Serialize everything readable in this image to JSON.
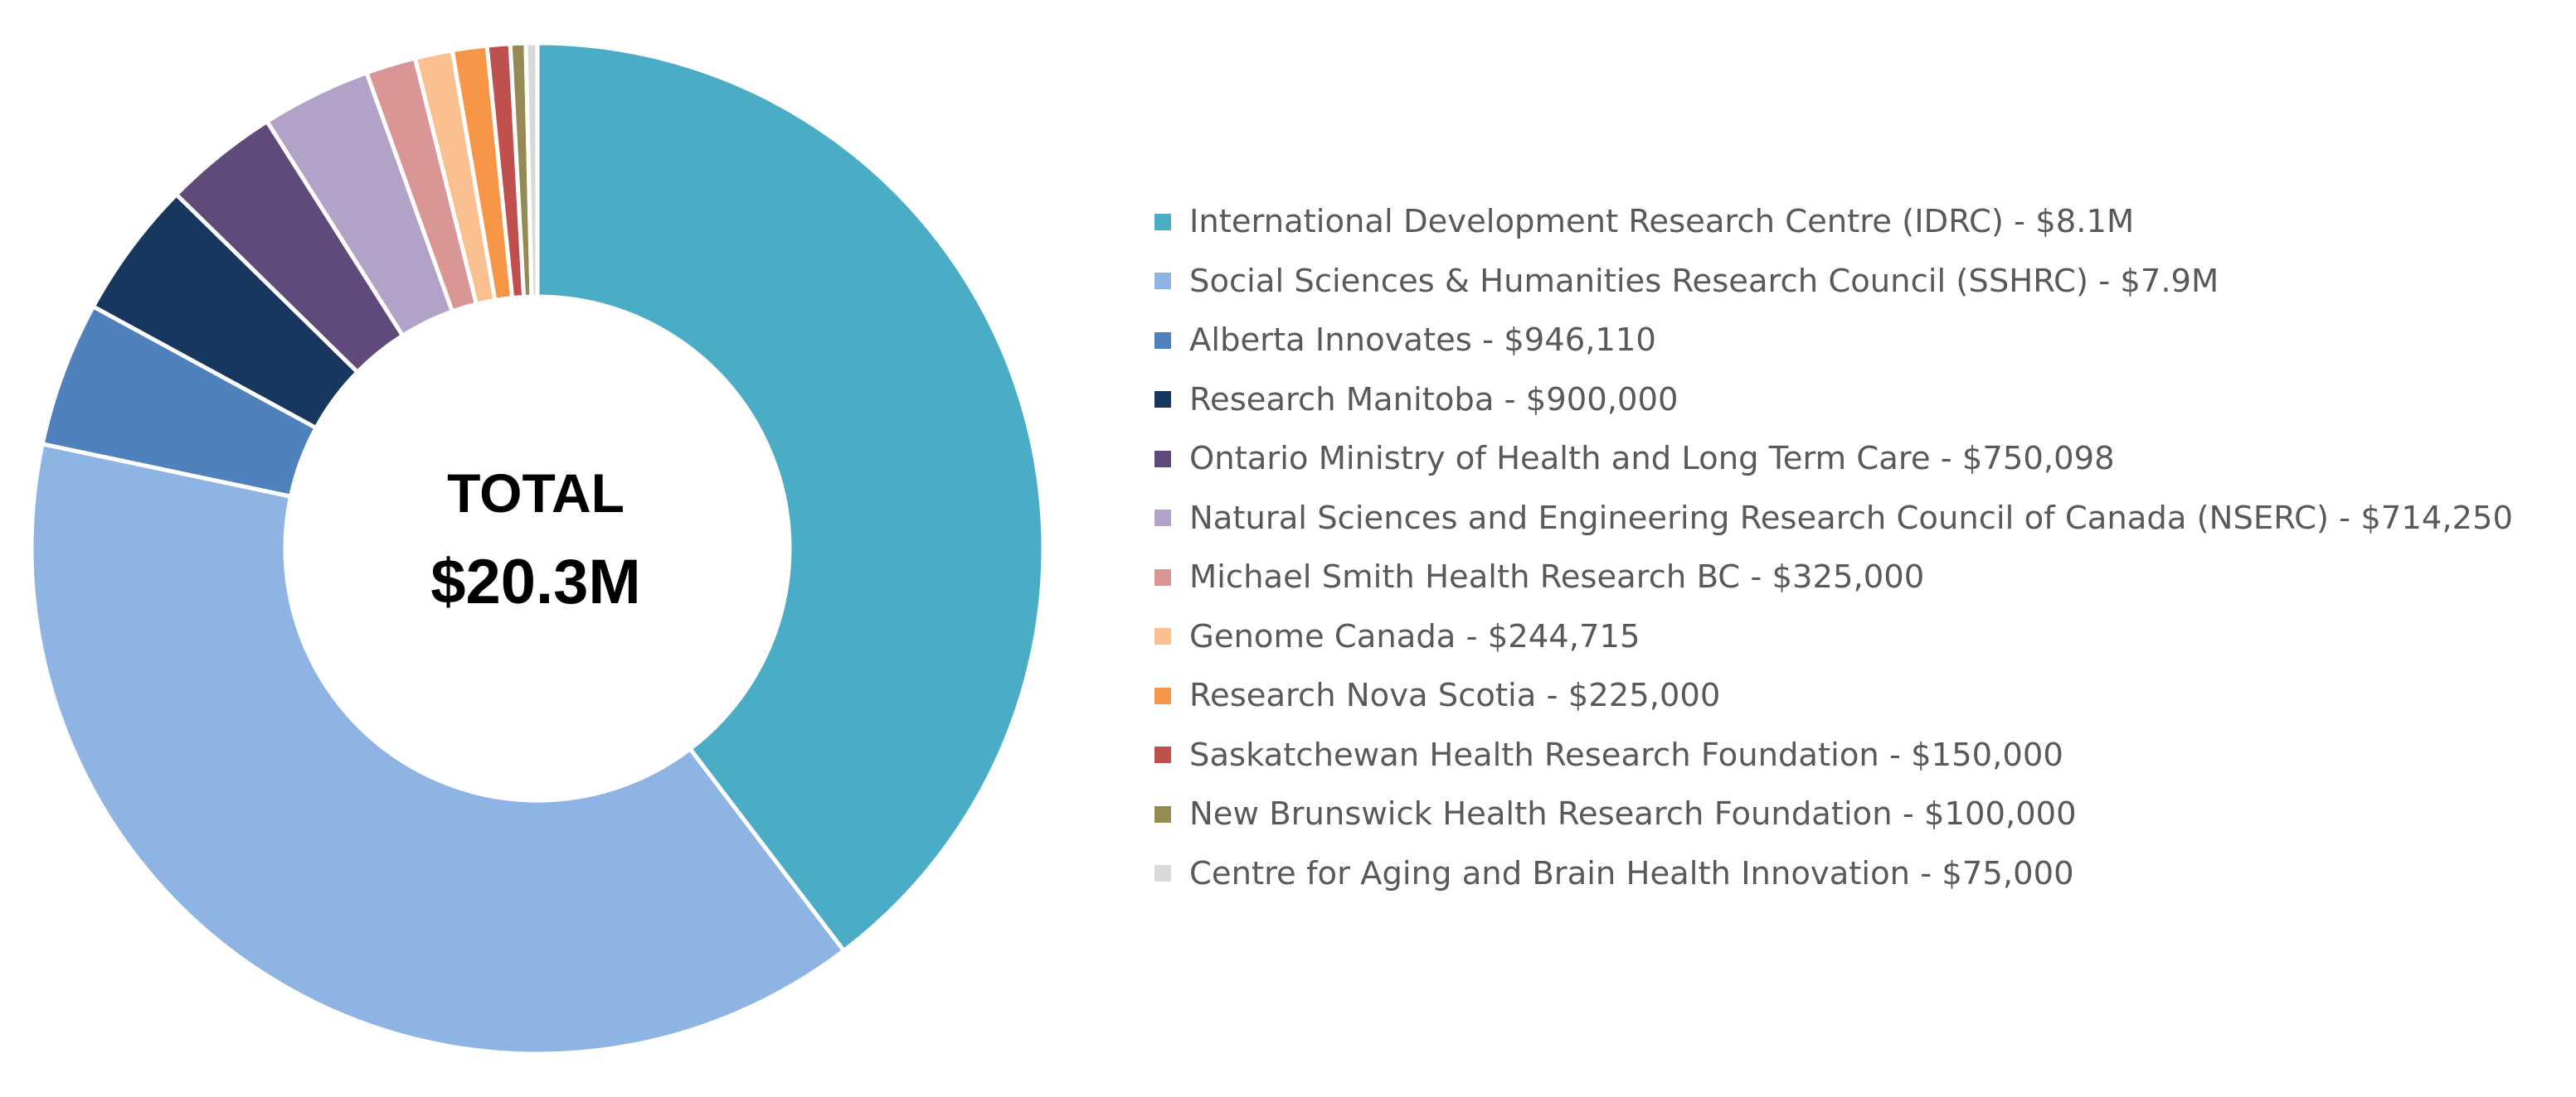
{
  "chart_data": {
    "type": "pie",
    "variant": "donut",
    "center_text": {
      "line1": "TOTAL",
      "line2": "$20.3M"
    },
    "legend_position": "right",
    "slices": [
      {
        "label": "International Development Research Centre (IDRC) - $8.1M",
        "value": 8100000,
        "color": "#4BACC6"
      },
      {
        "label": "Social Sciences & Humanities Research Council (SSHRC) - $7.9M",
        "value": 7900000,
        "color": "#8EB4E3"
      },
      {
        "label": "Alberta Innovates - $946,110",
        "value": 946110,
        "color": "#4F81BD"
      },
      {
        "label": "Research Manitoba - $900,000",
        "value": 900000,
        "color": "#17375E"
      },
      {
        "label": "Ontario Ministry of Health and Long Term Care - $750,098",
        "value": 750098,
        "color": "#604A7B"
      },
      {
        "label": "Natural Sciences and Engineering Research Council of Canada (NSERC) - $714,250",
        "value": 714250,
        "color": "#B3A2C7"
      },
      {
        "label": "Michael Smith Health Research BC - $325,000",
        "value": 325000,
        "color": "#D99694"
      },
      {
        "label": "Genome Canada - $244,715",
        "value": 244715,
        "color": "#FAC090"
      },
      {
        "label": "Research Nova Scotia - $225,000",
        "value": 225000,
        "color": "#F79646"
      },
      {
        "label": "Saskatchewan Health Research Foundation - $150,000",
        "value": 150000,
        "color": "#C0504D"
      },
      {
        "label": "New Brunswick Health Research Foundation  - $100,000",
        "value": 100000,
        "color": "#948A54"
      },
      {
        "label": "Centre for Aging and Brain Health Innovation - $75,000",
        "value": 75000,
        "color": "#D9D9D9"
      }
    ]
  }
}
